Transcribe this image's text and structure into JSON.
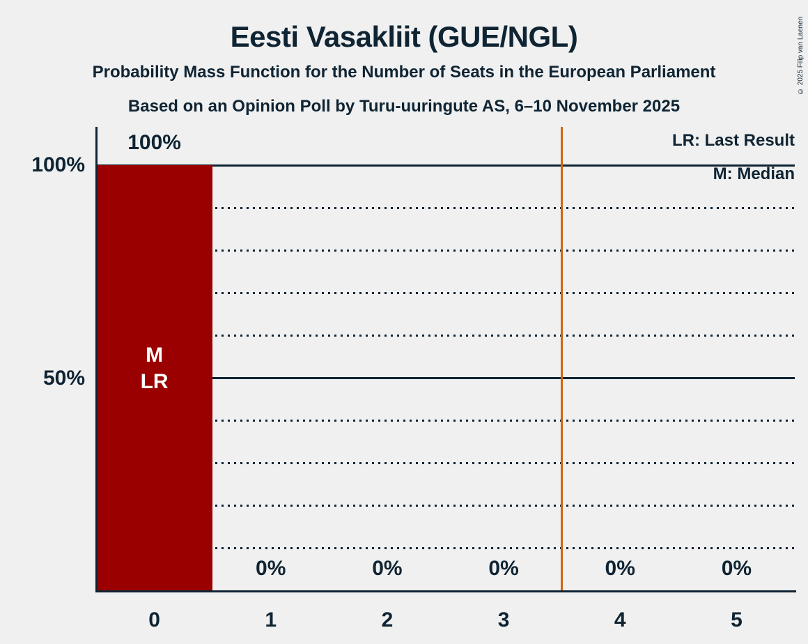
{
  "header": {
    "title": "Eesti Vasakliit (GUE/NGL)",
    "subtitle": "Probability Mass Function for the Number of Seats in the European Parliament",
    "source_line": "Based on an Opinion Poll by Turu-uuringute AS, 6–10 November 2025"
  },
  "copyright": "© 2025 Filip van Laenen",
  "legend": {
    "last_result": "LR: Last Result",
    "median": "M: Median"
  },
  "chart_data": {
    "type": "bar",
    "title": "Eesti Vasakliit (GUE/NGL)",
    "categories": [
      "0",
      "1",
      "2",
      "3",
      "4",
      "5"
    ],
    "values": [
      100,
      0,
      0,
      0,
      0,
      0
    ],
    "value_labels": [
      "100%",
      "0%",
      "0%",
      "0%",
      "0%",
      "0%"
    ],
    "bar_annotations": [
      [
        "M",
        "LR"
      ],
      [],
      [],
      [],
      [],
      []
    ],
    "median_seats": 0,
    "last_result_seats": 0,
    "ylim": [
      0,
      100
    ],
    "y_tick_labels": [
      {
        "label": "100%",
        "value": 100
      },
      {
        "label": "50%",
        "value": 50
      }
    ],
    "gridlines": [
      {
        "value": 100,
        "style": "solid"
      },
      {
        "value": 90,
        "style": "dotted"
      },
      {
        "value": 80,
        "style": "dotted"
      },
      {
        "value": 70,
        "style": "dotted"
      },
      {
        "value": 60,
        "style": "dotted"
      },
      {
        "value": 50,
        "style": "solid"
      },
      {
        "value": 40,
        "style": "dotted"
      },
      {
        "value": 30,
        "style": "dotted"
      },
      {
        "value": 20,
        "style": "dotted"
      },
      {
        "value": 10,
        "style": "dotted"
      }
    ],
    "majority_line": {
      "x": 3.5,
      "color": "#d2640a"
    },
    "colors": {
      "bar": "#9b0000",
      "bar_label": "#ffffff",
      "ink": "#0f2433",
      "background": "#f0f0f0"
    },
    "legend_position": "top-right",
    "grid": "horizontal"
  }
}
